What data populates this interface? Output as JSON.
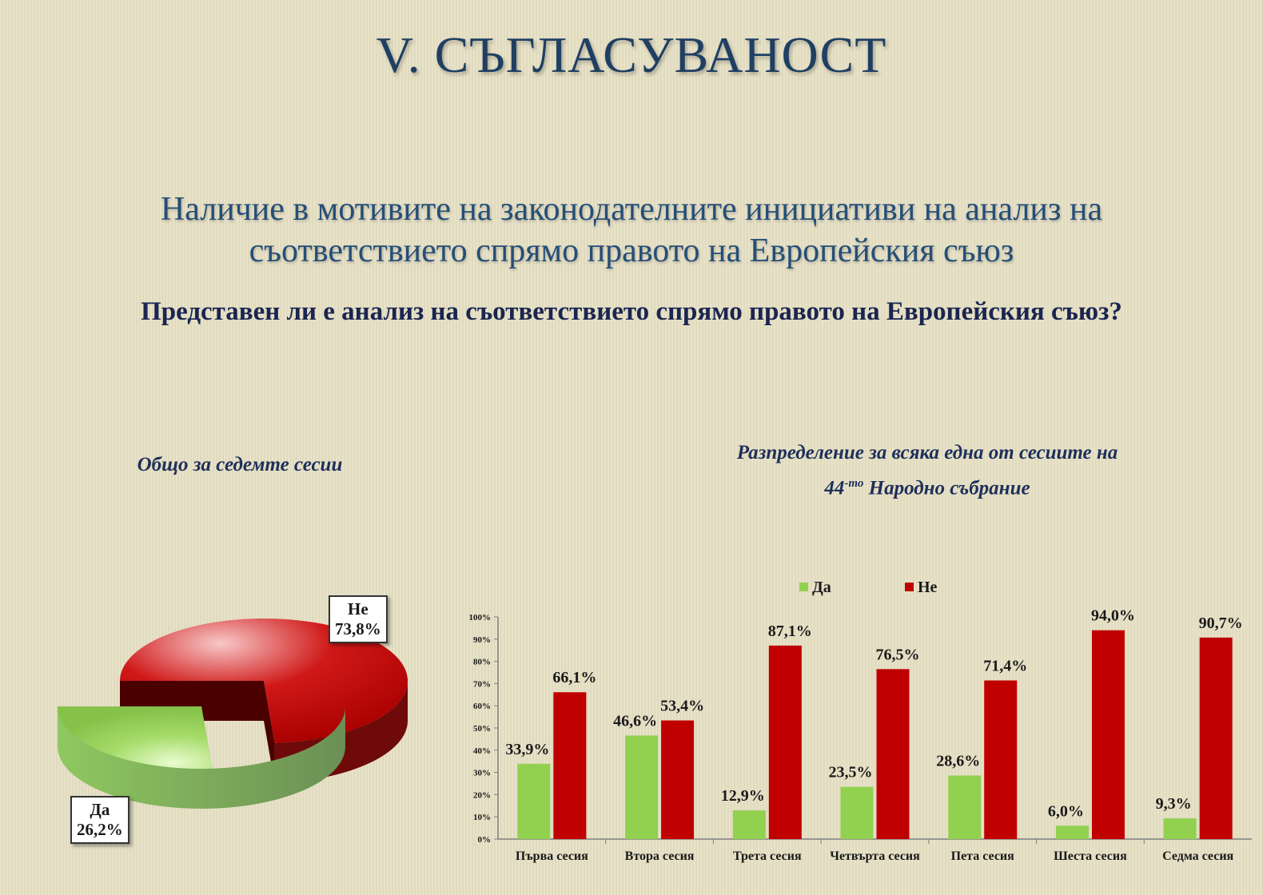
{
  "slide": {
    "title": "V. СЪГЛАСУВАНОСТ",
    "subtitle_line1": "Наличие в мотивите на законодателните инициативи на анализ на",
    "subtitle_line2": "съответствието спрямо правото на Европейския съюз",
    "question": "Представен ли е анализ на съответствието спрямо правото на Европейския съюз?"
  },
  "colors": {
    "yes": "#92d050",
    "no": "#c00000",
    "title": "#1f3f63"
  },
  "chart_data": [
    {
      "type": "pie",
      "title": "Общо за седемте сесии",
      "labels": [
        "Не",
        "Да"
      ],
      "values": [
        73.8,
        26.2
      ],
      "value_labels": [
        "73,8%",
        "26,2%"
      ],
      "style": "3d-exploded"
    },
    {
      "type": "bar",
      "title_line1": "Разпределение  за всяка една от сесиите на",
      "title_number": "44",
      "title_sup": "-то",
      "title_line2_rest": " Народно събрание",
      "categories": [
        "Първа  сесия",
        "Втора сесия",
        "Трета сесия",
        "Четвърта сесия",
        "Пета сесия",
        "Шеста сесия",
        "Седма сесия"
      ],
      "series": [
        {
          "name": "Да",
          "values": [
            33.9,
            46.6,
            12.9,
            23.5,
            28.6,
            6.0,
            9.3
          ],
          "labels": [
            "33,9%",
            "46,6%",
            "12,9%",
            "23,5%",
            "28,6%",
            "6,0%",
            "9,3%"
          ]
        },
        {
          "name": "Не",
          "values": [
            66.1,
            53.4,
            87.1,
            76.5,
            71.4,
            94.0,
            90.7
          ],
          "labels": [
            "66,1%",
            "53,4%",
            "87,1%",
            "76,5%",
            "71,4%",
            "94,0%",
            "90,7%"
          ]
        }
      ],
      "ylim": [
        0,
        100
      ],
      "yticks": [
        "0%",
        "10%",
        "20%",
        "30%",
        "40%",
        "50%",
        "60%",
        "70%",
        "80%",
        "90%",
        "100%"
      ],
      "legend_position": "top",
      "grid": false
    }
  ]
}
